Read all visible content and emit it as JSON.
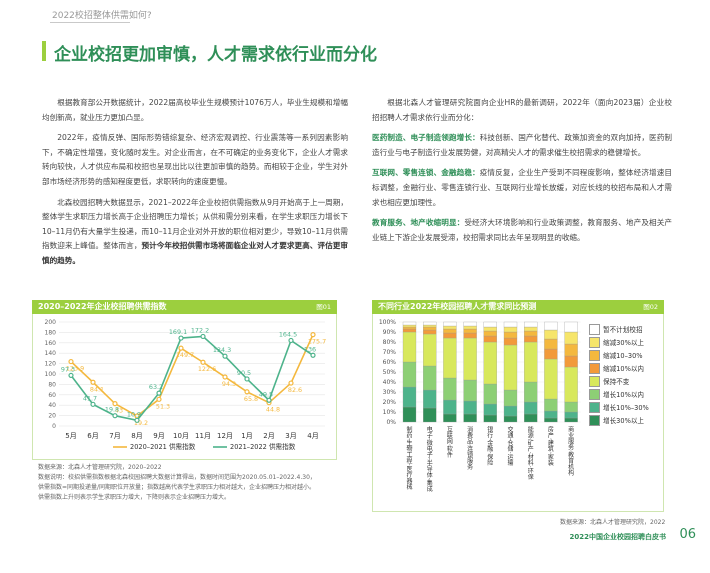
{
  "header": {
    "kicker": "2022校招整体供需如何?",
    "title": "企业校招更加审慎，人才需求依行业而分化"
  },
  "left_text": [
    "根据教育部公开数据统计，2022届高校毕业生规模预计1076万人，毕业生规模和增幅均创新高，就业压力更加凸显。",
    "2022年，疫情反弹、国际形势错综复杂、经济宏观调控、行业震荡等一系列因素影响下，不确定性增强，变化随时发生。对企业而言，在不可确定的业务变化下，企业人才需求转向较快，人才供应布局和校招也呈现出比以往更加审慎的趋势。而相较于企业，学生对外部市场经济形势的感知程度更低，求职转向的速度更慢。",
    "北森校园招聘大数据显示，2021–2022年企业校招供需指数从9月开始高于上一周期，整体学生求职压力增长高于企业招聘压力增长；从供和需分别来看，在学生求职压力增长下10–11月仍有大量学生投递，而10–11月企业对外开放的职位相对更少，导致10–11月供需指数迎来上峰值。整体而言，"
  ],
  "left_text_bold": "预计今年校招供需市场将面临企业对人才要求更高、评估更审慎的趋势。",
  "right_text_intro": "根据北森人才管理研究院面向企业HR的最新调研，2022年（面向2023届）企业校招招聘人才需求依行业而分化：",
  "right_paragraphs": [
    {
      "lead": "医药制造、电子制造领跑增长：",
      "text": "科技创新、国产化替代、政策加资金的双向加持，医药制造行业与电子制造行业发展势健，对高精尖人才的需求催生校招需求的稳健增长。"
    },
    {
      "lead": "互联网、零售连锁、金融趋稳：",
      "text": "疫情反复，企业生产受到不同程度影响，整体经济增速目标调整，金融行业、零售连锁行业、互联网行业增长放缓，对应长线的校招布局和人才需求也相应更加理性。"
    },
    {
      "lead": "教育服务、地产收缩明显：",
      "text": "受经济大环境影响和行业政策调整，教育服务、地产及相关产业链上下游企业发展受滞，校招需求同比去年呈现明显的收缩。"
    }
  ],
  "chart1": {
    "header": "2020–2022年企业校招聘供需指数",
    "tag": "图01",
    "categories": [
      "5月",
      "6月",
      "7月",
      "8月",
      "9月",
      "10月",
      "11月",
      "12月",
      "1月",
      "2月",
      "3月",
      "4月"
    ],
    "y_ticks": [
      "200",
      "180",
      "160",
      "140",
      "120",
      "100",
      "80",
      "60",
      "40",
      "20",
      "0"
    ],
    "series": [
      {
        "name": "2020–2021 供需指数",
        "color": "#f4b83e",
        "values": [
          123.9,
          84.1,
          43.0,
          19.2,
          51.3,
          149.7,
          122.6,
          94.3,
          65.8,
          44.8,
          82.6,
          175.7
        ]
      },
      {
        "name": "2021–2022 供需指数",
        "color": "#4db38b",
        "values": [
          97.3,
          41.7,
          19.8,
          10.9,
          63.2,
          169.1,
          172.2,
          134.3,
          90.5,
          49.5,
          164.5,
          136.0
        ]
      }
    ]
  },
  "chart1_notes": [
    "数据来源：北森人才管理研究院，2020–2022",
    "数据说明：校招供需指数根据北森校园招聘大数据计算得出，数据时间范围为2020.05.01–2022.4.30，",
    "供需指数=同期投递量/同期职位开放量；指数越高代表学生求职压力相对越大，企业招聘压力相对越小。",
    "供需指数上升则表示学生求职压力增大，下降则表示企业招聘压力增大。"
  ],
  "chart2": {
    "header": "不同行业2022年校园招聘人才需求同比预测",
    "tag": "图02",
    "y_ticks": [
      "100%",
      "90%",
      "80%",
      "70%",
      "60%",
      "50%",
      "40%",
      "30%",
      "20%",
      "10%",
      "0%"
    ],
    "categories": [
      "制药·生物工程·医疗器械",
      "电子·微电子·半导体·集成",
      "互联网·软件",
      "消费品·连锁服务",
      "银行·金融·保险",
      "交通·仓储·运输",
      "能源·矿产·材料·环保",
      "房产·建筑·家装",
      "商业服务·教育机构"
    ],
    "legend": [
      {
        "name": "暂不计划校招",
        "color": "#ffffff"
      },
      {
        "name": "缩减30%以上",
        "color": "#f6e56a"
      },
      {
        "name": "缩减10–30%",
        "color": "#f4b83e"
      },
      {
        "name": "缩减10%以内",
        "color": "#f29a3a"
      },
      {
        "name": "保持不变",
        "color": "#d8e85c"
      },
      {
        "name": "增长10%以内",
        "color": "#8dcf75"
      },
      {
        "name": "增长10%–30%",
        "color": "#4db38b"
      },
      {
        "name": "增长30%以上",
        "color": "#2f8f58"
      }
    ],
    "values": [
      [
        3,
        2,
        2,
        3,
        30,
        25,
        20,
        15
      ],
      [
        3,
        2,
        3,
        4,
        32,
        24,
        18,
        14
      ],
      [
        4,
        3,
        4,
        5,
        40,
        22,
        14,
        8
      ],
      [
        4,
        3,
        4,
        5,
        42,
        21,
        13,
        8
      ],
      [
        5,
        4,
        5,
        6,
        42,
        20,
        11,
        7
      ],
      [
        5,
        5,
        6,
        7,
        45,
        16,
        10,
        6
      ],
      [
        5,
        4,
        5,
        6,
        40,
        20,
        12,
        8
      ],
      [
        8,
        9,
        10,
        10,
        40,
        12,
        7,
        4
      ],
      [
        10,
        12,
        12,
        11,
        35,
        10,
        6,
        4
      ]
    ]
  },
  "chart2_note": "数据来源：北森人才管理研究院，2022",
  "footer": {
    "text": "2022中国企业校园招聘白皮书",
    "page": "06"
  }
}
